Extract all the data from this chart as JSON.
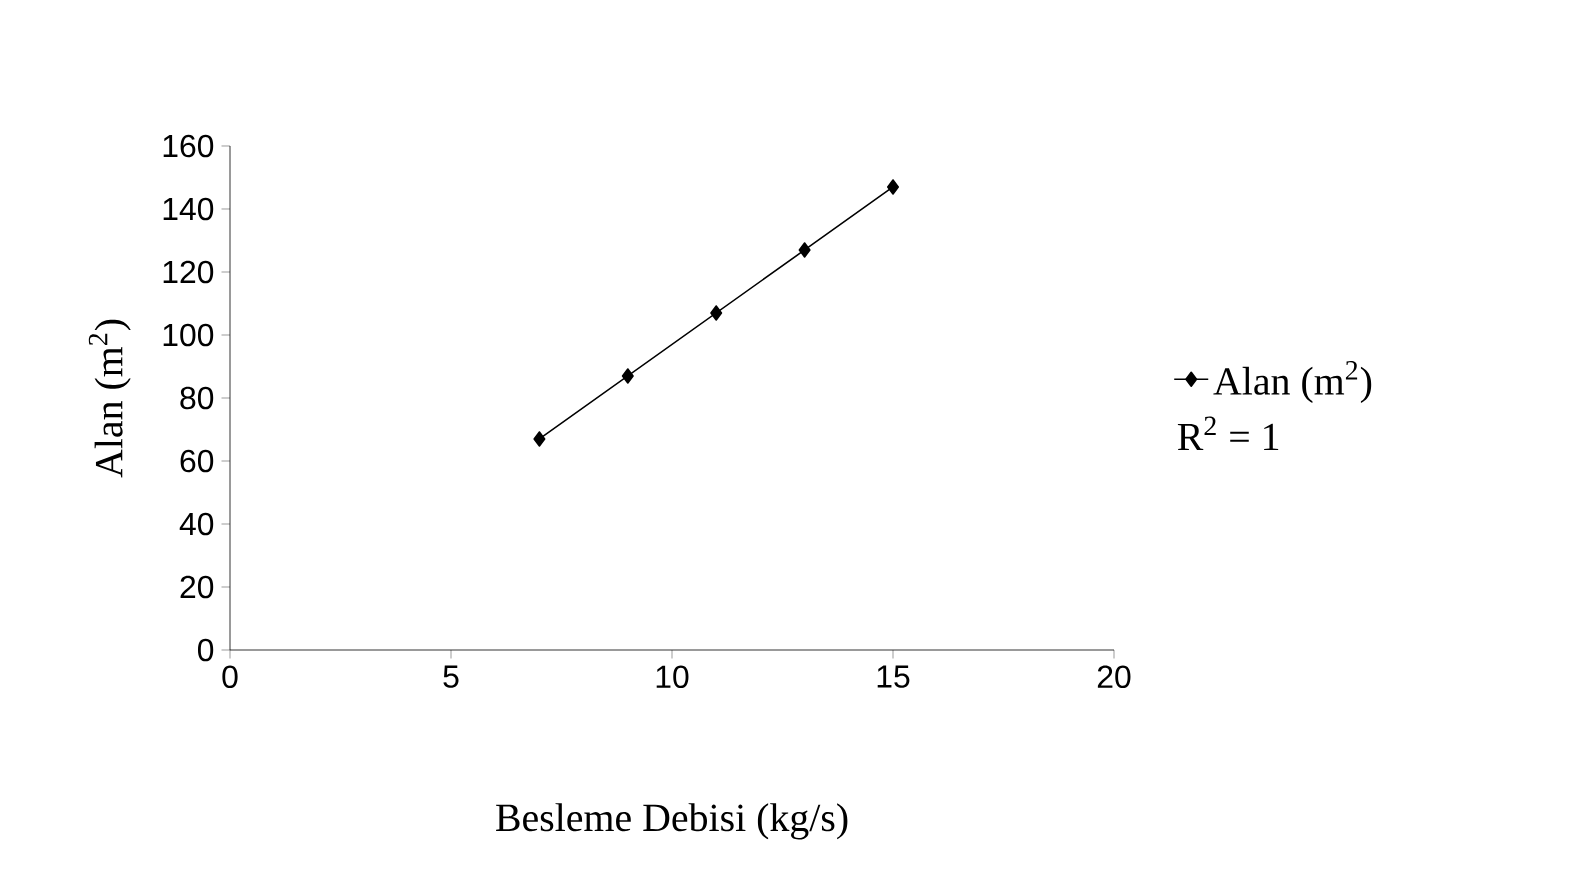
{
  "chart_data": {
    "type": "line",
    "xlabel": "Besleme Debisi (kg/s)",
    "ylabel": "Alan (m$^{2}$)",
    "x": [
      7,
      9,
      11,
      13,
      15
    ],
    "series": [
      {
        "name": "Alan (m$^{2}$)",
        "color": "#000000",
        "values": [
          67,
          87,
          107,
          127,
          147
        ]
      }
    ],
    "xlim": [
      0,
      20
    ],
    "ylim": [
      0,
      160
    ],
    "xticks": [
      0,
      5,
      10,
      15,
      20
    ],
    "yticks": [
      0,
      20,
      40,
      60,
      80,
      100,
      120,
      140,
      160
    ],
    "marker": "diamond",
    "legend": "right",
    "annotations": [
      "R$^{2}$ = 1"
    ]
  }
}
